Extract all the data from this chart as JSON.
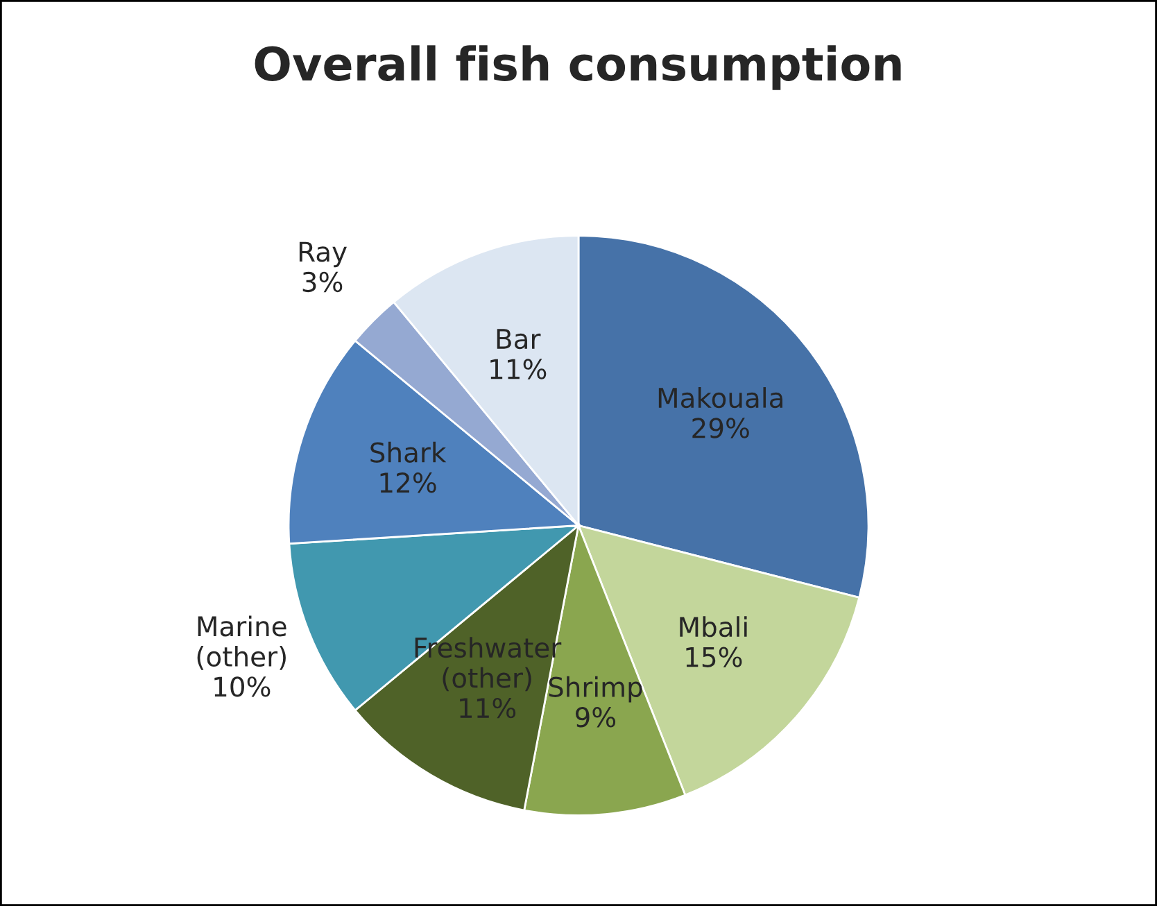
{
  "chart_data": {
    "type": "pie",
    "title": "Overall fish consumption",
    "categories": [
      "Makouala",
      "Mbali",
      "Shrimp",
      "Freshwater\n(other)",
      "Marine\n(other)",
      "Shark",
      "Ray",
      "Bar"
    ],
    "values": [
      29,
      15,
      9,
      11,
      10,
      12,
      3,
      11
    ],
    "colors": [
      "#4672a8",
      "#c3d69b",
      "#8aa64f",
      "#4f6228",
      "#4198af",
      "#4f81bd",
      "#95a9d2",
      "#dce6f2"
    ],
    "value_labels": [
      "29%",
      "15%",
      "9%",
      "11%",
      "10%",
      "12%",
      "3%",
      "11%"
    ]
  }
}
